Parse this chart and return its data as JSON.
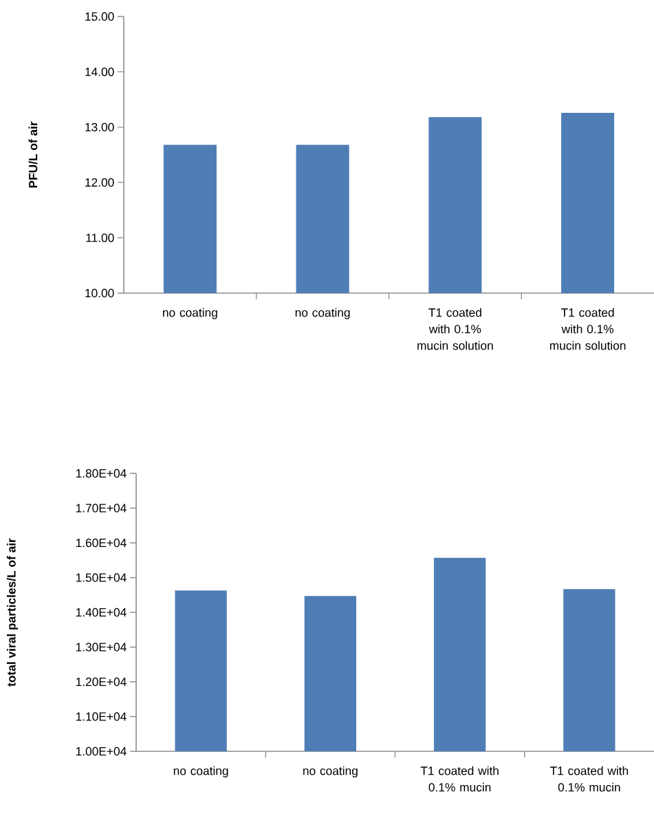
{
  "chart_data": [
    {
      "type": "bar",
      "ylabel": "PFU/L of air",
      "categories": [
        "no coating",
        "no coating",
        "T1 coated with 0.1% mucin solution",
        "T1 coated with 0.1% mucin solution"
      ],
      "values": [
        12.68,
        12.68,
        13.18,
        13.26
      ],
      "color": "#4f7db5",
      "ylim": [
        10,
        15
      ],
      "yticks": [
        {
          "value": 10,
          "label": "10.00"
        },
        {
          "value": 11,
          "label": "11.00"
        },
        {
          "value": 12,
          "label": "12.00"
        },
        {
          "value": 13,
          "label": "13.00"
        },
        {
          "value": 14,
          "label": "14.00"
        },
        {
          "value": 15,
          "label": "15.00"
        }
      ]
    },
    {
      "type": "bar",
      "ylabel": "total viral particles/L of air",
      "categories": [
        "no coating",
        "no coating",
        "T1 coated with 0.1% mucin",
        "T1 coated with 0.1% mucin"
      ],
      "values": [
        14630,
        14470,
        15570,
        14670
      ],
      "color": "#4f7db5",
      "ylim": [
        10000,
        18000
      ],
      "yticks": [
        {
          "value": 10000,
          "label": "1.00E+04"
        },
        {
          "value": 11000,
          "label": "1.10E+04"
        },
        {
          "value": 12000,
          "label": "1.20E+04"
        },
        {
          "value": 13000,
          "label": "1.30E+04"
        },
        {
          "value": 14000,
          "label": "1.40E+04"
        },
        {
          "value": 15000,
          "label": "1.50E+04"
        },
        {
          "value": 16000,
          "label": "1.60E+04"
        },
        {
          "value": 17000,
          "label": "1.70E+04"
        },
        {
          "value": 18000,
          "label": "1.80E+04"
        }
      ]
    }
  ]
}
